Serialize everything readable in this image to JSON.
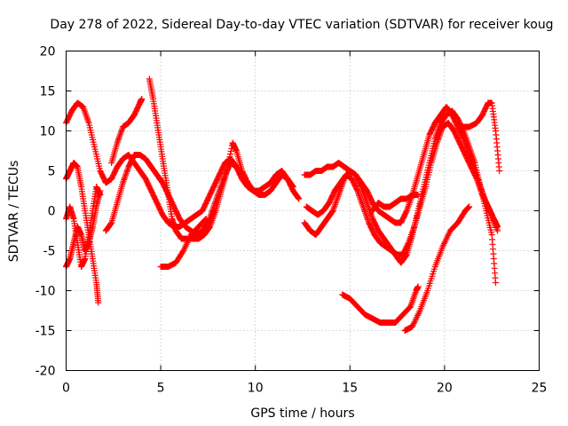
{
  "chart_data": {
    "type": "scatter",
    "title": "Day 278 of 2022, Sidereal Day-to-day VTEC variation (SDTVAR) for receiver koug",
    "xlabel": "GPS time / hours",
    "ylabel": "SDTVAR / TECUs",
    "xlim": [
      0,
      25
    ],
    "ylim": [
      -20,
      20
    ],
    "xticks": [
      "0",
      "5",
      "10",
      "15",
      "20",
      "25"
    ],
    "yticks": [
      "-20",
      "-15",
      "-10",
      "-5",
      "0",
      "5",
      "10",
      "15",
      "20"
    ],
    "grid": true,
    "marker": "plus",
    "color": "#ff0000",
    "series": [
      {
        "name": "arc-1",
        "points": [
          [
            0,
            11
          ],
          [
            0.3,
            12.5
          ],
          [
            0.6,
            13.5
          ],
          [
            0.9,
            13
          ],
          [
            1.2,
            11
          ],
          [
            1.5,
            8
          ],
          [
            1.8,
            5
          ],
          [
            2.1,
            3.5
          ],
          [
            2.4,
            4
          ],
          [
            2.7,
            5.5
          ],
          [
            3.0,
            6.5
          ],
          [
            3.3,
            7
          ],
          [
            3.6,
            6
          ],
          [
            3.9,
            5
          ],
          [
            4.2,
            4
          ],
          [
            4.5,
            2.5
          ],
          [
            4.8,
            1
          ],
          [
            5.1,
            -0.5
          ],
          [
            5.4,
            -1.5
          ],
          [
            5.7,
            -2
          ],
          [
            6.0,
            -2
          ],
          [
            6.3,
            -1.5
          ],
          [
            6.6,
            -1
          ],
          [
            6.9,
            -0.5
          ],
          [
            7.2,
            0
          ],
          [
            7.5,
            1.5
          ],
          [
            7.8,
            3
          ],
          [
            8.1,
            4.5
          ],
          [
            8.4,
            6
          ],
          [
            8.7,
            6.5
          ],
          [
            9.0,
            5.5
          ],
          [
            9.3,
            4
          ],
          [
            9.6,
            3
          ],
          [
            9.9,
            2.5
          ],
          [
            10.2,
            2.5
          ],
          [
            10.5,
            3
          ],
          [
            10.8,
            3.5
          ],
          [
            11.1,
            4.5
          ],
          [
            11.4,
            5
          ],
          [
            11.7,
            4
          ],
          [
            12.0,
            3
          ]
        ]
      },
      {
        "name": "arc-2",
        "points": [
          [
            0,
            4
          ],
          [
            0.2,
            5
          ],
          [
            0.4,
            6
          ],
          [
            0.6,
            5.5
          ],
          [
            0.8,
            3
          ],
          [
            1.0,
            0
          ],
          [
            1.2,
            -3
          ],
          [
            1.4,
            -6
          ],
          [
            1.6,
            -9
          ],
          [
            1.7,
            -11.5
          ]
        ]
      },
      {
        "name": "arc-3",
        "points": [
          [
            0,
            -7
          ],
          [
            0.2,
            -6
          ],
          [
            0.4,
            -4
          ],
          [
            0.6,
            -2
          ],
          [
            0.8,
            -3
          ],
          [
            1.0,
            -5
          ],
          [
            1.2,
            -4
          ],
          [
            1.4,
            -2
          ],
          [
            1.6,
            0.5
          ],
          [
            1.8,
            2.5
          ]
        ]
      },
      {
        "name": "arc-4",
        "points": [
          [
            0,
            -1
          ],
          [
            0.2,
            0.5
          ],
          [
            0.4,
            -1
          ],
          [
            0.6,
            -4
          ],
          [
            0.8,
            -7
          ],
          [
            1.0,
            -6
          ],
          [
            1.2,
            -3
          ],
          [
            1.4,
            0
          ],
          [
            1.6,
            3
          ],
          [
            1.8,
            2
          ]
        ]
      },
      {
        "name": "arc-5",
        "points": [
          [
            2.1,
            -2.5
          ],
          [
            2.4,
            -1.5
          ],
          [
            2.7,
            1
          ],
          [
            3.0,
            3.5
          ],
          [
            3.3,
            5.5
          ],
          [
            3.6,
            7
          ],
          [
            3.9,
            7
          ],
          [
            4.2,
            6.5
          ],
          [
            4.5,
            5.5
          ],
          [
            4.8,
            4.5
          ],
          [
            5.1,
            3.5
          ],
          [
            5.4,
            2
          ],
          [
            5.7,
            0.5
          ],
          [
            6.0,
            -1
          ],
          [
            6.3,
            -2
          ],
          [
            6.6,
            -2.5
          ],
          [
            6.9,
            -3
          ],
          [
            7.2,
            -2.5
          ],
          [
            7.5,
            -1.5
          ],
          [
            7.8,
            0.5
          ],
          [
            8.1,
            2.5
          ],
          [
            8.4,
            4.5
          ],
          [
            8.7,
            6
          ],
          [
            9.0,
            5.5
          ],
          [
            9.3,
            4
          ],
          [
            9.6,
            3
          ],
          [
            9.9,
            2.5
          ],
          [
            10.2,
            2
          ],
          [
            10.5,
            2
          ],
          [
            10.8,
            2.5
          ],
          [
            11.1,
            3.5
          ],
          [
            11.4,
            4.5
          ],
          [
            11.7,
            4
          ],
          [
            12.0,
            2.5
          ],
          [
            12.3,
            1.5
          ]
        ]
      },
      {
        "name": "arc-6",
        "points": [
          [
            2.4,
            6
          ],
          [
            2.7,
            8.5
          ],
          [
            3.0,
            10.5
          ],
          [
            3.3,
            11
          ],
          [
            3.6,
            12
          ],
          [
            3.9,
            13.5
          ],
          [
            4.0,
            14
          ]
        ]
      },
      {
        "name": "arc-7",
        "points": [
          [
            4.4,
            16.5
          ],
          [
            4.6,
            14
          ],
          [
            4.8,
            11
          ],
          [
            5.0,
            8
          ],
          [
            5.2,
            5
          ],
          [
            5.4,
            2
          ],
          [
            5.6,
            -1
          ],
          [
            5.8,
            -2.5
          ],
          [
            6.1,
            -3.5
          ],
          [
            6.4,
            -3.5
          ],
          [
            6.7,
            -3.5
          ],
          [
            7.0,
            -3.5
          ],
          [
            7.3,
            -3
          ],
          [
            7.6,
            -2
          ],
          [
            7.9,
            0
          ],
          [
            8.2,
            2.5
          ],
          [
            8.5,
            5
          ],
          [
            8.8,
            8.5
          ],
          [
            9.0,
            7.5
          ],
          [
            9.3,
            5
          ],
          [
            9.6,
            3.5
          ],
          [
            9.9,
            2.5
          ],
          [
            10.2,
            2
          ],
          [
            10.5,
            2
          ]
        ]
      },
      {
        "name": "arc-8",
        "points": [
          [
            5.0,
            -7
          ],
          [
            5.4,
            -7
          ],
          [
            5.8,
            -6.5
          ],
          [
            6.2,
            -5
          ],
          [
            6.6,
            -3
          ],
          [
            7.0,
            -2
          ],
          [
            7.4,
            -1
          ]
        ]
      },
      {
        "name": "arc-9",
        "points": [
          [
            12.6,
            -1.5
          ],
          [
            12.9,
            -2.5
          ],
          [
            13.2,
            -3
          ],
          [
            13.5,
            -2
          ],
          [
            13.8,
            -1
          ],
          [
            14.1,
            0
          ],
          [
            14.4,
            2
          ],
          [
            14.7,
            4
          ],
          [
            15.0,
            5
          ],
          [
            15.3,
            4.5
          ],
          [
            15.6,
            3
          ],
          [
            15.9,
            1
          ],
          [
            16.2,
            -1
          ],
          [
            16.5,
            -2.5
          ],
          [
            16.8,
            -3.5
          ],
          [
            17.1,
            -4.5
          ],
          [
            17.4,
            -5.5
          ],
          [
            17.7,
            -6.5
          ],
          [
            18.0,
            -5.5
          ],
          [
            18.3,
            -3
          ],
          [
            18.6,
            0
          ],
          [
            18.9,
            3
          ],
          [
            19.2,
            6
          ],
          [
            19.5,
            9
          ],
          [
            19.8,
            11
          ],
          [
            20.1,
            12
          ],
          [
            20.4,
            12.5
          ],
          [
            20.7,
            11.5
          ],
          [
            21.0,
            10
          ],
          [
            21.3,
            8
          ],
          [
            21.6,
            6
          ],
          [
            21.9,
            3
          ],
          [
            22.2,
            0
          ],
          [
            22.5,
            -3
          ],
          [
            22.7,
            -9
          ]
        ]
      },
      {
        "name": "arc-10",
        "points": [
          [
            12.6,
            4.5
          ],
          [
            12.9,
            4.5
          ],
          [
            13.2,
            5
          ],
          [
            13.5,
            5
          ],
          [
            13.8,
            5.5
          ],
          [
            14.1,
            5.5
          ],
          [
            14.4,
            6
          ],
          [
            14.7,
            5.5
          ],
          [
            15.0,
            5
          ],
          [
            15.3,
            4.5
          ],
          [
            15.6,
            3.5
          ],
          [
            15.9,
            2.5
          ],
          [
            16.2,
            1
          ],
          [
            16.5,
            0
          ],
          [
            16.8,
            -0.5
          ],
          [
            17.1,
            -1
          ],
          [
            17.4,
            -1.5
          ],
          [
            17.7,
            -1.5
          ],
          [
            18.0,
            0
          ],
          [
            18.3,
            2
          ],
          [
            18.6,
            4.5
          ],
          [
            18.9,
            7
          ],
          [
            19.2,
            9.5
          ],
          [
            19.5,
            11
          ],
          [
            19.8,
            12
          ],
          [
            20.1,
            13
          ],
          [
            20.4,
            12
          ],
          [
            20.7,
            10.5
          ],
          [
            21.0,
            9
          ],
          [
            21.3,
            7
          ],
          [
            21.6,
            5
          ],
          [
            21.9,
            3
          ],
          [
            22.2,
            1
          ],
          [
            22.5,
            -0.5
          ],
          [
            22.8,
            -2.5
          ]
        ]
      },
      {
        "name": "arc-11",
        "points": [
          [
            12.7,
            0.5
          ],
          [
            13.0,
            0
          ],
          [
            13.3,
            -0.5
          ],
          [
            13.6,
            0
          ],
          [
            13.9,
            1
          ],
          [
            14.2,
            2.5
          ],
          [
            14.5,
            3.5
          ],
          [
            14.8,
            4.5
          ],
          [
            15.1,
            4
          ],
          [
            15.4,
            2.5
          ],
          [
            15.7,
            0.5
          ],
          [
            16.0,
            -1.5
          ],
          [
            16.3,
            -3
          ],
          [
            16.6,
            -4
          ],
          [
            16.9,
            -4.5
          ],
          [
            17.2,
            -5
          ],
          [
            17.5,
            -5.5
          ],
          [
            17.8,
            -5.5
          ],
          [
            18.1,
            -4
          ],
          [
            18.4,
            -2
          ],
          [
            18.7,
            0.5
          ],
          [
            19.0,
            3
          ],
          [
            19.3,
            6
          ],
          [
            19.6,
            8.5
          ],
          [
            19.9,
            10.5
          ],
          [
            20.2,
            11
          ],
          [
            20.5,
            10
          ],
          [
            20.8,
            8.5
          ],
          [
            21.1,
            7
          ],
          [
            21.4,
            5.5
          ],
          [
            21.7,
            4
          ],
          [
            22.0,
            2
          ],
          [
            22.3,
            0.5
          ],
          [
            22.6,
            -1
          ],
          [
            22.8,
            -2
          ]
        ]
      },
      {
        "name": "arc-12",
        "points": [
          [
            16.2,
            0
          ],
          [
            16.5,
            1
          ],
          [
            16.8,
            0.5
          ],
          [
            17.1,
            0.5
          ],
          [
            17.4,
            1
          ],
          [
            17.7,
            1.5
          ],
          [
            18.0,
            1.5
          ],
          [
            18.3,
            2
          ],
          [
            18.6,
            2
          ]
        ]
      },
      {
        "name": "arc-13",
        "points": [
          [
            14.6,
            -10.5
          ],
          [
            15.0,
            -11
          ],
          [
            15.4,
            -12
          ],
          [
            15.8,
            -13
          ],
          [
            16.2,
            -13.5
          ],
          [
            16.6,
            -14
          ],
          [
            17.0,
            -14
          ],
          [
            17.4,
            -14
          ],
          [
            17.8,
            -13
          ],
          [
            18.2,
            -12
          ],
          [
            18.5,
            -10
          ],
          [
            18.6,
            -9.5
          ]
        ]
      },
      {
        "name": "arc-14",
        "points": [
          [
            17.9,
            -15
          ],
          [
            18.3,
            -14.5
          ],
          [
            18.7,
            -12.5
          ],
          [
            19.1,
            -10
          ],
          [
            19.5,
            -7
          ],
          [
            19.9,
            -4.5
          ],
          [
            20.3,
            -2.5
          ],
          [
            20.7,
            -1.5
          ],
          [
            21.1,
            0
          ],
          [
            21.3,
            0.5
          ]
        ]
      },
      {
        "name": "arc-15",
        "points": [
          [
            20.9,
            10.5
          ],
          [
            21.3,
            10.5
          ],
          [
            21.7,
            11
          ],
          [
            22.0,
            12
          ],
          [
            22.3,
            13.5
          ],
          [
            22.5,
            13.5
          ],
          [
            22.7,
            10
          ],
          [
            22.9,
            5
          ]
        ]
      }
    ]
  }
}
